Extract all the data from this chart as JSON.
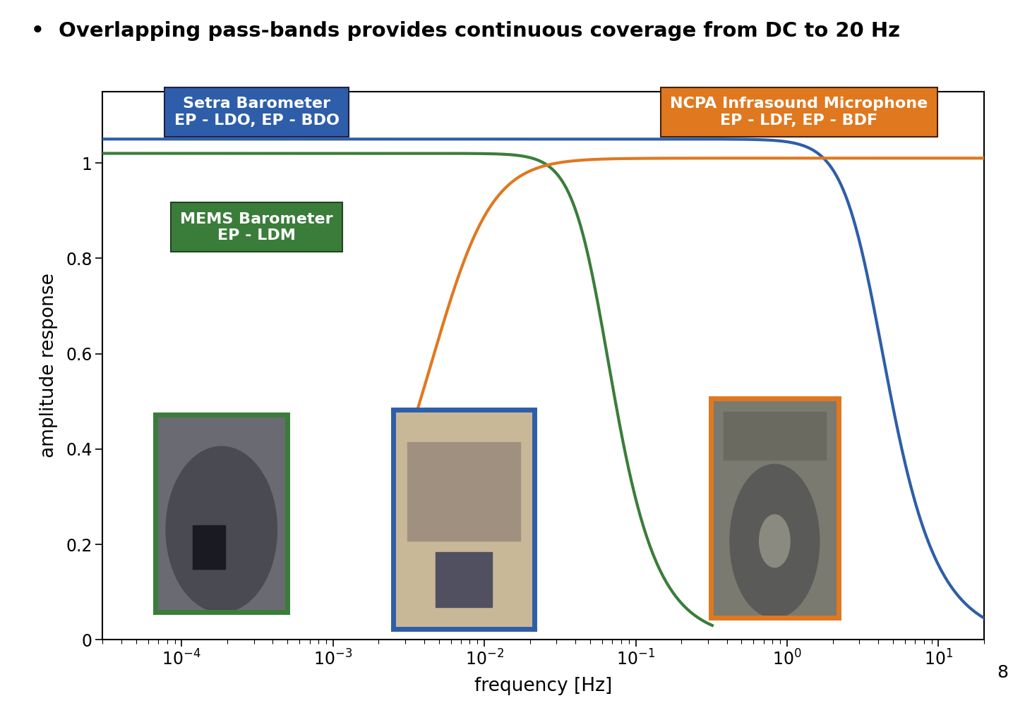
{
  "title": "•  Overlapping pass-bands provides continuous coverage from DC to 20 Hz",
  "xlabel": "frequency [Hz]",
  "ylabel": "amplitude response",
  "xlim": [
    3e-05,
    20
  ],
  "ylim": [
    0,
    1.15
  ],
  "yticks": [
    0,
    0.2,
    0.4,
    0.6,
    0.8,
    1.0
  ],
  "blue_label1": "Setra Barometer",
  "blue_label2": "EP - LDO, EP - BDO",
  "green_label1": "MEMS Barometer",
  "green_label2": "EP - LDM",
  "orange_label1": "NCPA Infrasound Microphone",
  "orange_label2": "EP - LDF, EP - BDF",
  "blue_color": "#2E5EAA",
  "green_color": "#3A7D3A",
  "orange_color": "#E07820",
  "background_color": "#FFFFFF",
  "blue_fc_hz": 3.5,
  "blue_order": 1.8,
  "blue_amplitude": 1.05,
  "green_fc_hz": 0.055,
  "green_order": 2.0,
  "green_amplitude": 1.02,
  "green_fmax": 0.32,
  "orange_fc_hz": 0.006,
  "orange_order": 1.2,
  "orange_fmin": 0.003,
  "orange_amplitude": 1.01
}
